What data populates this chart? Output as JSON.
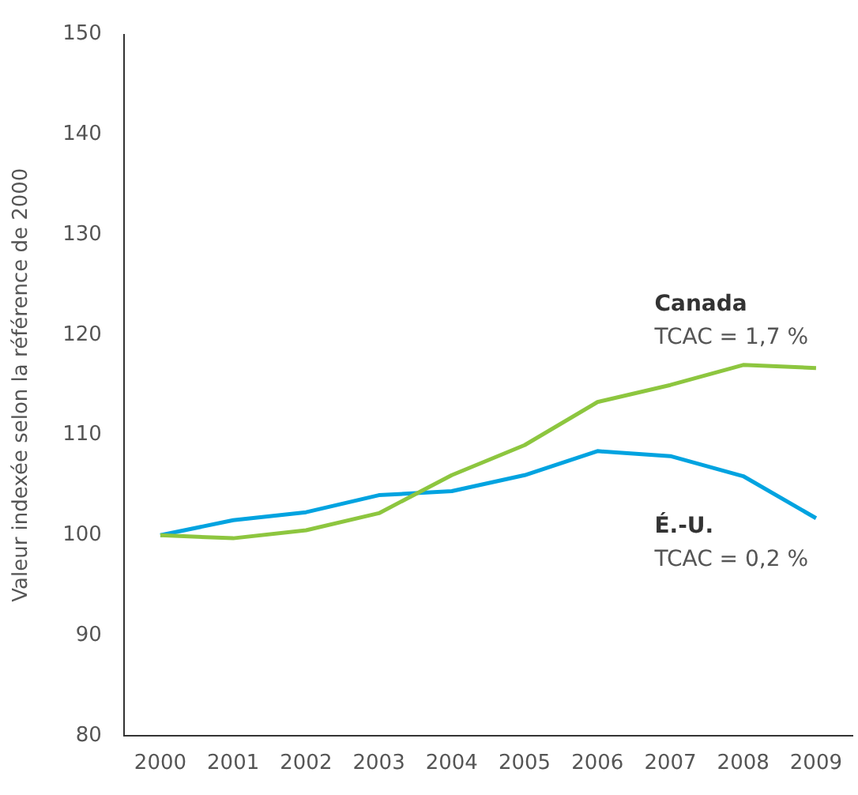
{
  "chart_data": {
    "type": "line",
    "ylabel": "Valeur indexée selon la référence de 2000",
    "categories": [
      "2000",
      "2001",
      "2002",
      "2003",
      "2004",
      "2005",
      "2006",
      "2007",
      "2008",
      "2009"
    ],
    "series": [
      {
        "name": "Canada",
        "color": "#8dc63f",
        "values": [
          100,
          99.7,
          100.5,
          102.2,
          106,
          109,
          113.3,
          115,
          117,
          116.7
        ]
      },
      {
        "name": "É.-U.",
        "color": "#00a3e0",
        "values": [
          100,
          101.5,
          102.3,
          104,
          104.4,
          106,
          108.4,
          107.9,
          105.9,
          101.7
        ]
      }
    ],
    "annotations": [
      "TCAC = 1,7 %",
      "TCAC = 0,2 %"
    ],
    "ylim": [
      80,
      150
    ],
    "yticks": [
      80,
      90,
      100,
      110,
      120,
      130,
      140,
      150
    ],
    "grid": false,
    "legend": false,
    "marker": "none",
    "line_style": "solid"
  }
}
